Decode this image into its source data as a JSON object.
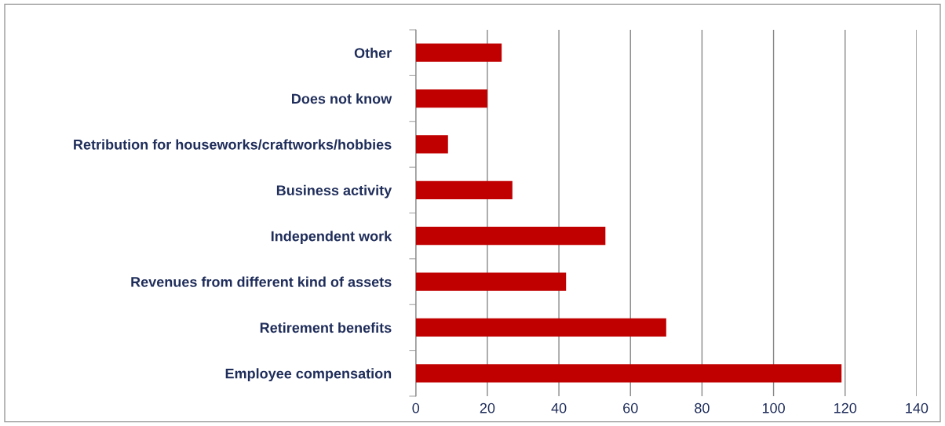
{
  "chart_data": {
    "type": "bar",
    "orientation": "horizontal",
    "categories": [
      "Other",
      "Does not know",
      "Retribution for houseworks/craftworks/hobbies",
      "Business activity",
      "Independent work",
      "Revenues from different kind of assets",
      "Retirement benefits",
      "Employee compensation"
    ],
    "values": [
      24,
      20,
      9,
      27,
      53,
      42,
      70,
      119
    ],
    "color": "#c00000",
    "xlim": [
      0,
      140
    ],
    "xticks": [
      0,
      20,
      40,
      60,
      80,
      100,
      120,
      140
    ],
    "grid": "x"
  }
}
